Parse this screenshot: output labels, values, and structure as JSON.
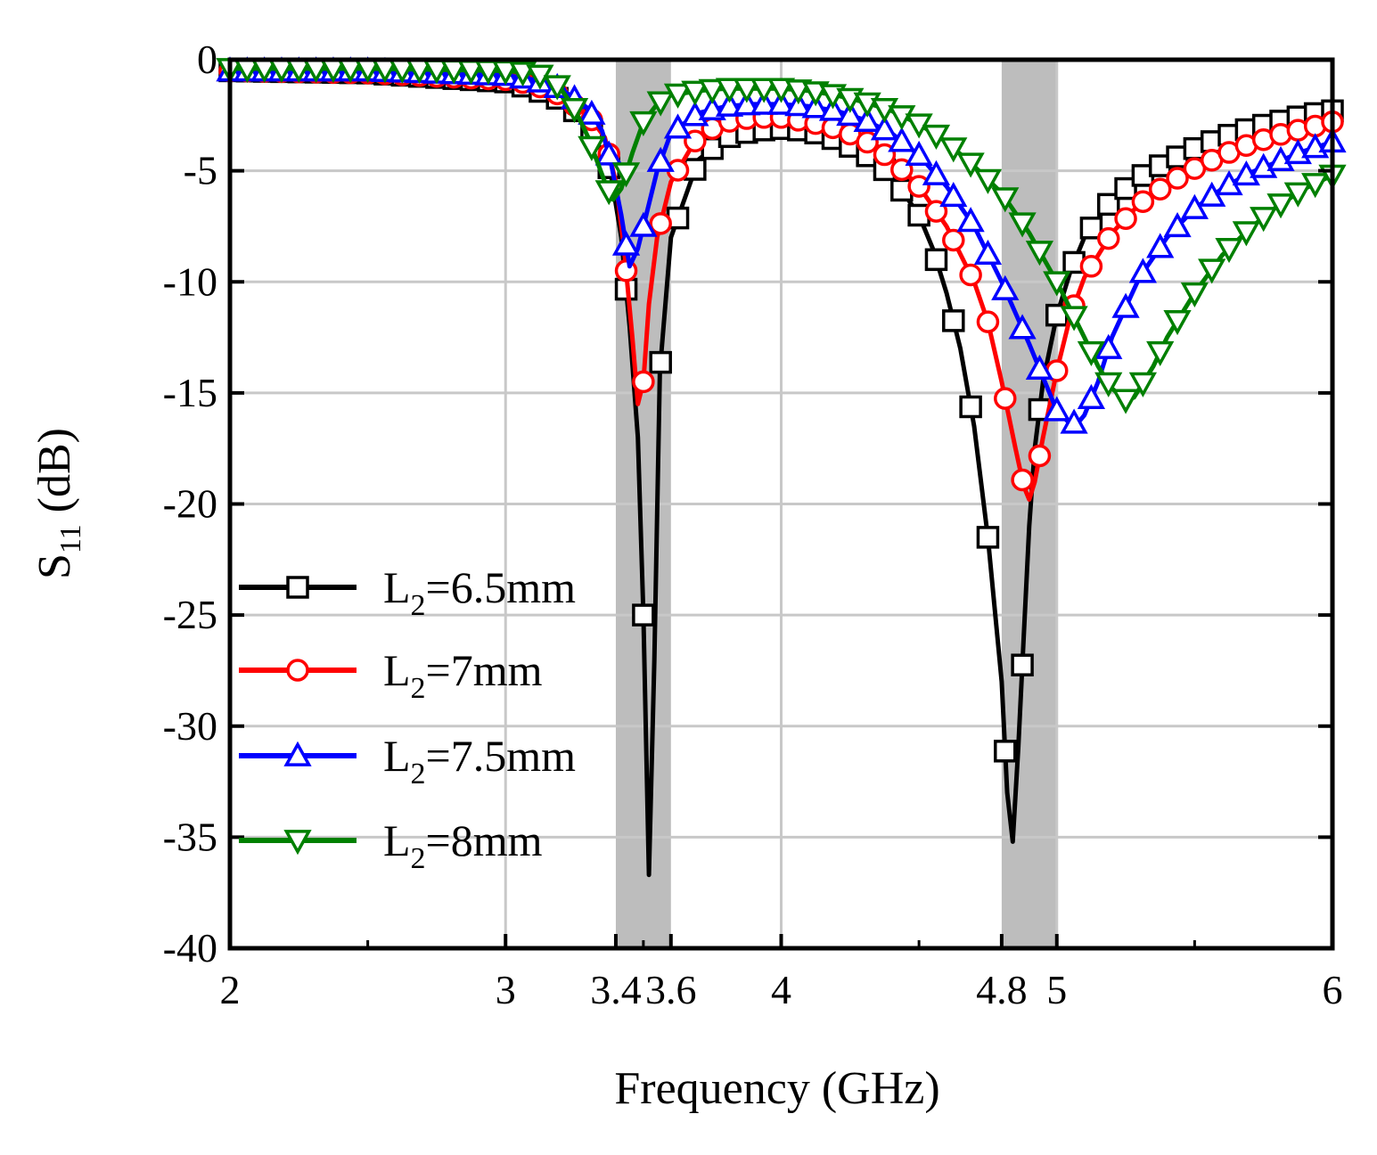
{
  "chart_data": {
    "type": "line",
    "title": "",
    "xlabel": "Frequency (GHz)",
    "ylabel": "S11 (dB)",
    "ylabel_main": "S",
    "ylabel_sub": "11",
    "ylabel_unit": " (dB)",
    "xlim": [
      2,
      6
    ],
    "ylim": [
      -40,
      0
    ],
    "x_ticks": [
      2,
      3,
      3.4,
      3.6,
      4,
      4.8,
      5,
      6
    ],
    "x_tick_labels": [
      "2",
      "3",
      "3.4",
      "3.6",
      "4",
      "4.8",
      "5",
      "6"
    ],
    "x_grid": [
      3,
      4,
      5
    ],
    "y_ticks": [
      0,
      -5,
      -10,
      -15,
      -20,
      -25,
      -30,
      -35,
      -40
    ],
    "y_tick_labels": [
      "0",
      "-5",
      "-10",
      "-15",
      "-20",
      "-25",
      "-30",
      "-35",
      "-40"
    ],
    "grid": true,
    "legend_position": "left-bottom",
    "highlight_bands": [
      [
        3.4,
        3.6
      ],
      [
        4.8,
        5.0
      ]
    ],
    "highlight_color": "#bdbdbd",
    "series": [
      {
        "name": "L2=6.5mm",
        "legend_main": "L",
        "legend_sub": "2",
        "legend_rest": "=6.5mm",
        "color": "#000000",
        "marker": "square",
        "x": [
          2.0,
          2.5,
          3.0,
          3.1,
          3.2,
          3.3,
          3.38,
          3.42,
          3.45,
          3.48,
          3.5,
          3.52,
          3.54,
          3.56,
          3.6,
          3.7,
          3.8,
          3.9,
          4.0,
          4.1,
          4.2,
          4.3,
          4.4,
          4.5,
          4.55,
          4.6,
          4.65,
          4.7,
          4.75,
          4.8,
          4.82,
          4.84,
          4.86,
          4.88,
          4.9,
          4.92,
          4.95,
          5.0,
          5.05,
          5.1,
          5.2,
          5.3,
          5.4,
          5.5,
          5.6,
          5.7,
          5.8,
          5.9,
          6.0
        ],
        "y": [
          -0.5,
          -0.6,
          -1.0,
          -1.3,
          -1.8,
          -2.8,
          -5.0,
          -8.0,
          -12.0,
          -17.0,
          -25.0,
          -36.7,
          -27.0,
          -14.0,
          -8.0,
          -4.5,
          -3.5,
          -3.2,
          -3.1,
          -3.2,
          -3.6,
          -4.2,
          -5.2,
          -7.0,
          -8.5,
          -10.5,
          -13.0,
          -16.5,
          -21.5,
          -28.0,
          -33.0,
          -35.2,
          -31.0,
          -26.0,
          -21.0,
          -17.5,
          -14.5,
          -11.5,
          -9.5,
          -8.0,
          -6.3,
          -5.3,
          -4.6,
          -4.0,
          -3.5,
          -3.1,
          -2.8,
          -2.5,
          -2.3
        ]
      },
      {
        "name": "L2=7mm",
        "legend_main": "L",
        "legend_sub": "2",
        "legend_rest": "=7mm",
        "color": "#ff0000",
        "marker": "circle",
        "x": [
          2.0,
          2.5,
          3.0,
          3.1,
          3.2,
          3.3,
          3.36,
          3.4,
          3.43,
          3.46,
          3.48,
          3.5,
          3.52,
          3.55,
          3.6,
          3.7,
          3.8,
          3.9,
          4.0,
          4.1,
          4.2,
          4.3,
          4.4,
          4.5,
          4.6,
          4.7,
          4.75,
          4.8,
          4.85,
          4.88,
          4.9,
          4.92,
          4.95,
          5.0,
          5.05,
          5.1,
          5.2,
          5.3,
          5.4,
          5.5,
          5.6,
          5.7,
          5.8,
          5.9,
          6.0
        ],
        "y": [
          -0.5,
          -0.6,
          -0.9,
          -1.1,
          -1.6,
          -2.5,
          -3.5,
          -5.5,
          -8.5,
          -12.5,
          -15.5,
          -14.5,
          -11.0,
          -8.0,
          -5.5,
          -3.4,
          -2.8,
          -2.6,
          -2.6,
          -2.8,
          -3.1,
          -3.6,
          -4.5,
          -5.7,
          -7.5,
          -10.0,
          -11.8,
          -14.5,
          -17.5,
          -19.2,
          -19.8,
          -19.0,
          -17.0,
          -14.0,
          -11.5,
          -9.8,
          -7.8,
          -6.5,
          -5.6,
          -4.9,
          -4.3,
          -3.8,
          -3.4,
          -3.1,
          -2.8
        ]
      },
      {
        "name": "L2=7.5mm",
        "legend_main": "L",
        "legend_sub": "2",
        "legend_rest": "=7.5mm",
        "color": "#0000ff",
        "marker": "triangle-up",
        "x": [
          2.0,
          2.5,
          3.0,
          3.1,
          3.2,
          3.3,
          3.35,
          3.38,
          3.42,
          3.45,
          3.48,
          3.52,
          3.55,
          3.6,
          3.7,
          3.8,
          3.9,
          4.0,
          4.1,
          4.2,
          4.3,
          4.4,
          4.5,
          4.6,
          4.7,
          4.8,
          4.9,
          4.95,
          5.0,
          5.05,
          5.08,
          5.1,
          5.15,
          5.2,
          5.3,
          5.4,
          5.5,
          5.6,
          5.7,
          5.8,
          5.9,
          6.0
        ],
        "y": [
          -0.5,
          -0.5,
          -0.7,
          -0.9,
          -1.3,
          -2.2,
          -3.2,
          -4.5,
          -7.0,
          -9.3,
          -8.5,
          -6.5,
          -5.0,
          -3.3,
          -2.4,
          -2.1,
          -2.0,
          -2.0,
          -2.1,
          -2.3,
          -2.7,
          -3.3,
          -4.3,
          -5.7,
          -7.5,
          -10.0,
          -12.8,
          -14.3,
          -15.8,
          -16.4,
          -16.3,
          -16.0,
          -14.5,
          -12.5,
          -9.8,
          -8.0,
          -6.7,
          -5.8,
          -5.1,
          -4.6,
          -4.1,
          -3.7
        ]
      },
      {
        "name": "L2=8mm",
        "legend_main": "L",
        "legend_sub": "2",
        "legend_rest": "=8mm",
        "color": "#008000",
        "marker": "triangle-down",
        "x": [
          2.0,
          2.5,
          3.0,
          3.1,
          3.15,
          3.2,
          3.25,
          3.3,
          3.33,
          3.36,
          3.39,
          3.42,
          3.46,
          3.5,
          3.55,
          3.6,
          3.7,
          3.8,
          3.9,
          4.0,
          4.1,
          4.2,
          4.3,
          4.4,
          4.5,
          4.6,
          4.7,
          4.8,
          4.9,
          5.0,
          5.1,
          5.15,
          5.2,
          5.25,
          5.28,
          5.3,
          5.35,
          5.4,
          5.5,
          5.6,
          5.7,
          5.8,
          5.9,
          6.0
        ],
        "y": [
          -0.4,
          -0.4,
          -0.5,
          -0.6,
          -0.8,
          -1.3,
          -2.2,
          -3.5,
          -4.5,
          -5.5,
          -6.3,
          -5.8,
          -4.2,
          -2.8,
          -2.0,
          -1.6,
          -1.4,
          -1.3,
          -1.3,
          -1.3,
          -1.4,
          -1.6,
          -1.9,
          -2.3,
          -2.9,
          -3.7,
          -4.8,
          -6.0,
          -7.8,
          -10.0,
          -12.5,
          -13.8,
          -14.8,
          -15.3,
          -15.2,
          -14.8,
          -13.8,
          -12.5,
          -10.5,
          -8.8,
          -7.6,
          -6.6,
          -5.8,
          -5.2
        ]
      }
    ]
  }
}
